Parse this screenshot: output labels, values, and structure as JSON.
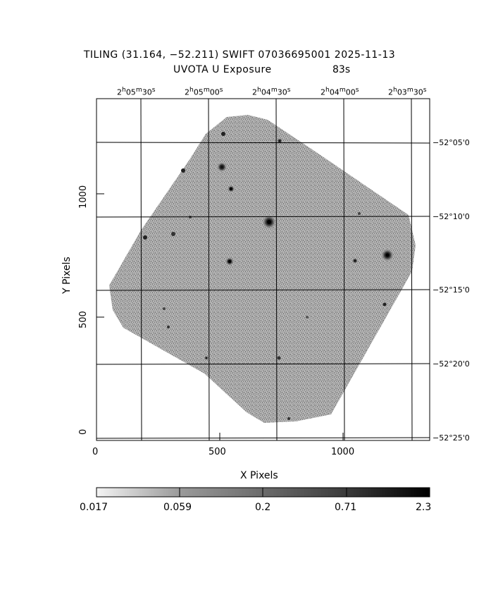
{
  "title": {
    "line1": "TILING (31.164, −52.211) SWIFT 07036695001 2025-11-13",
    "line2_left": "UVOTA U Exposure",
    "line2_right": "83s"
  },
  "axes": {
    "x_label": "X Pixels",
    "y_label": "Y Pixels",
    "x_ticks": [
      "0",
      "500",
      "1000"
    ],
    "y_ticks": [
      "0",
      "500",
      "1000"
    ]
  },
  "ra_ticks": [
    {
      "h": "2",
      "m": "05",
      "s": "30"
    },
    {
      "h": "2",
      "m": "05",
      "s": "00"
    },
    {
      "h": "2",
      "m": "04",
      "s": "30"
    },
    {
      "h": "2",
      "m": "04",
      "s": "00"
    },
    {
      "h": "2",
      "m": "03",
      "s": "30"
    }
  ],
  "dec_ticks": [
    "−52°05'0",
    "−52°10'0",
    "−52°15'0",
    "−52°20'0",
    "−52°25'0"
  ],
  "colorbar": {
    "labels": [
      "0.017",
      "0.059",
      "0.2",
      "0.71",
      "2.3"
    ]
  },
  "image": {
    "description_free": true,
    "x_range": [
      0,
      1350
    ],
    "y_range": [
      0,
      1390
    ],
    "footprint_color": "#9a9a9a"
  }
}
